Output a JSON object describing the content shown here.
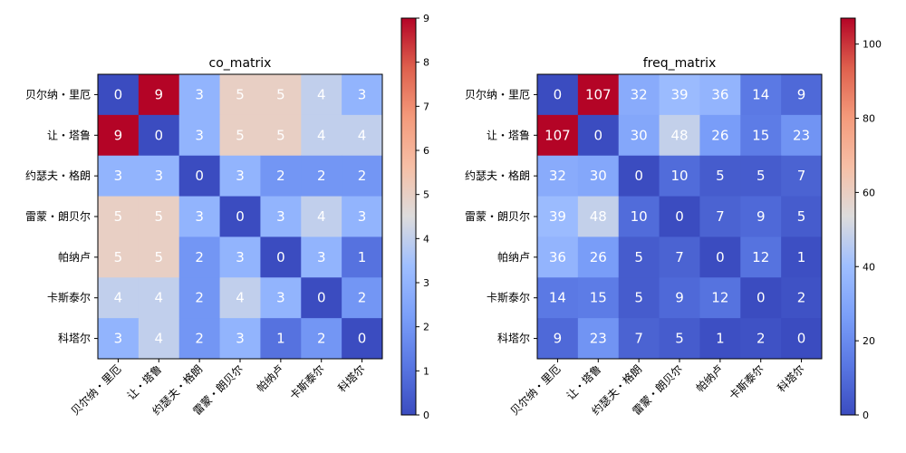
{
  "chart_data": [
    {
      "type": "heatmap",
      "title": "co_matrix",
      "labels": [
        "贝尔纳・里厄",
        "让・塔鲁",
        "约瑟夫・格朗",
        "雷蒙・朗贝尔",
        "帕纳卢",
        "卡斯泰尔",
        "科塔尔"
      ],
      "matrix": [
        [
          0,
          9,
          3,
          5,
          5,
          4,
          3
        ],
        [
          9,
          0,
          3,
          5,
          5,
          4,
          4
        ],
        [
          3,
          3,
          0,
          3,
          2,
          2,
          2
        ],
        [
          5,
          5,
          3,
          0,
          3,
          4,
          3
        ],
        [
          5,
          5,
          2,
          3,
          0,
          3,
          1
        ],
        [
          4,
          4,
          2,
          4,
          3,
          0,
          2
        ],
        [
          3,
          4,
          2,
          3,
          1,
          2,
          0
        ]
      ],
      "colormap": "coolwarm",
      "vmin": 0,
      "vmax": 9,
      "colorbar_ticks": [
        0,
        1,
        2,
        3,
        4,
        5,
        6,
        7,
        8,
        9
      ]
    },
    {
      "type": "heatmap",
      "title": "freq_matrix",
      "labels": [
        "贝尔纳・里厄",
        "让・塔鲁",
        "约瑟夫・格朗",
        "雷蒙・朗贝尔",
        "帕纳卢",
        "卡斯泰尔",
        "科塔尔"
      ],
      "matrix": [
        [
          0,
          107,
          32,
          39,
          36,
          14,
          9
        ],
        [
          107,
          0,
          30,
          48,
          26,
          15,
          23
        ],
        [
          32,
          30,
          0,
          10,
          5,
          5,
          7
        ],
        [
          39,
          48,
          10,
          0,
          7,
          9,
          5
        ],
        [
          36,
          26,
          5,
          7,
          0,
          12,
          1
        ],
        [
          14,
          15,
          5,
          9,
          12,
          0,
          2
        ],
        [
          9,
          23,
          7,
          5,
          1,
          2,
          0
        ]
      ],
      "colormap": "coolwarm",
      "vmin": 0,
      "vmax": 107,
      "colorbar_ticks": [
        0,
        20,
        40,
        60,
        80,
        100
      ]
    }
  ]
}
